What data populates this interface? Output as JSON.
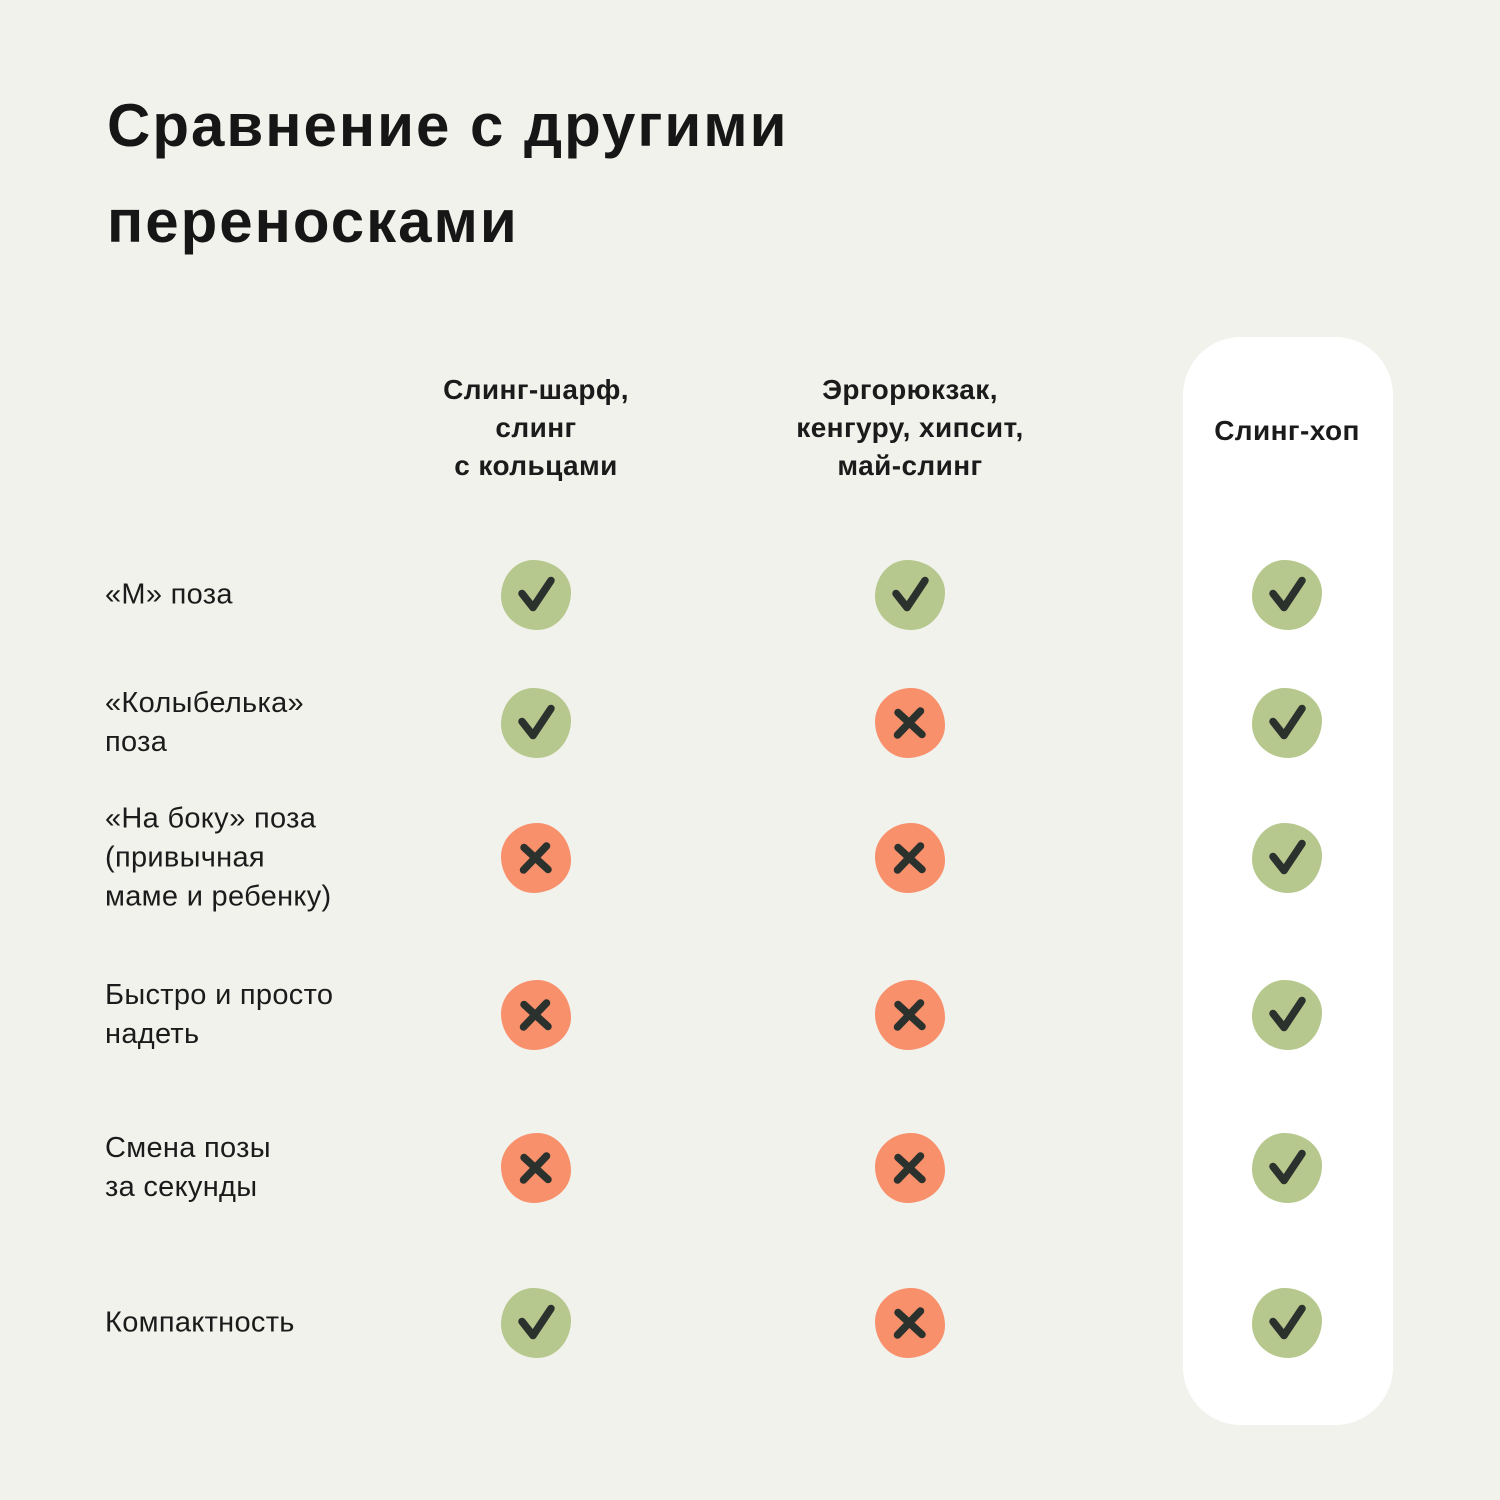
{
  "title": {
    "line1": "Сравнение с другими",
    "line2": "переносками"
  },
  "columns": [
    {
      "id": "sling-scarf",
      "lines": [
        "Слинг-шарф,",
        "слинг",
        "с кольцами"
      ],
      "highlighted": false
    },
    {
      "id": "ergo-kangaroo",
      "lines": [
        "Эргорюкзак,",
        "кенгуру, хипсит,",
        "май-слинг"
      ],
      "highlighted": false
    },
    {
      "id": "sling-hop",
      "lines": [
        "Слинг-хоп"
      ],
      "highlighted": true
    }
  ],
  "rows": [
    {
      "label_lines": [
        "«М» поза"
      ],
      "values": [
        "check",
        "check",
        "check"
      ]
    },
    {
      "label_lines": [
        "«Колыбелька»",
        "поза"
      ],
      "values": [
        "check",
        "cross",
        "check"
      ]
    },
    {
      "label_lines": [
        "«На боку» поза",
        "(привычная",
        "маме и ребенку)"
      ],
      "values": [
        "cross",
        "cross",
        "check"
      ]
    },
    {
      "label_lines": [
        "Быстро и просто",
        "надеть"
      ],
      "values": [
        "cross",
        "cross",
        "check"
      ]
    },
    {
      "label_lines": [
        "Смена позы",
        "за секунды"
      ],
      "values": [
        "cross",
        "cross",
        "check"
      ]
    },
    {
      "label_lines": [
        "Компактность"
      ],
      "values": [
        "check",
        "cross",
        "check"
      ]
    }
  ],
  "colors": {
    "background": "#F2F2EC",
    "card": "#FFFFFF",
    "check_bg": "#B6C88D",
    "cross_bg": "#F8906C",
    "mark": "#2B322E",
    "text": "#1B1B1B"
  },
  "chart_data": {
    "type": "table",
    "title": "Сравнение с другими переносками",
    "columns": [
      "Слинг-шарф, слинг с кольцами",
      "Эргорюкзак, кенгуру, хипсит, май-слинг",
      "Слинг-хоп"
    ],
    "row_labels": [
      "«М» поза",
      "«Колыбелька» поза",
      "«На боку» поза (привычная маме и ребенку)",
      "Быстро и просто надеть",
      "Смена позы за секунды",
      "Компактность"
    ],
    "values": [
      [
        true,
        true,
        true
      ],
      [
        true,
        false,
        true
      ],
      [
        false,
        false,
        true
      ],
      [
        false,
        false,
        true
      ],
      [
        false,
        false,
        true
      ],
      [
        true,
        false,
        true
      ]
    ],
    "highlighted_column": "Слинг-хоп",
    "legend": {
      "true": "зелёная галочка",
      "false": "оранжевый крестик"
    }
  }
}
